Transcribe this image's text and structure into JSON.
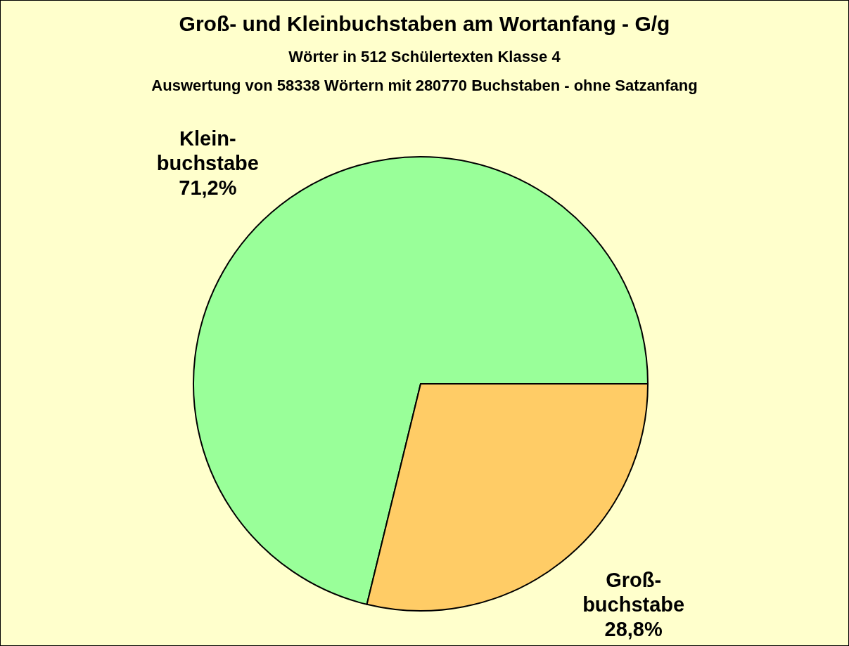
{
  "chart_data": {
    "type": "pie",
    "title": "Groß- und Kleinbuchstaben am Wortanfang - G/g",
    "subtitle": "Wörter in 512 Schülertexten Klasse 4\nAuswertung von 58338 Wörtern mit 280770 Buchstaben - ohne Satzanfang",
    "categories": [
      "Klein-buchstabe",
      "Groß-buchstabe"
    ],
    "values": [
      71.2,
      28.8
    ],
    "value_labels": [
      "71,2%",
      "28,8%"
    ],
    "colors": [
      "#99ff99",
      "#ffcc66"
    ]
  }
}
